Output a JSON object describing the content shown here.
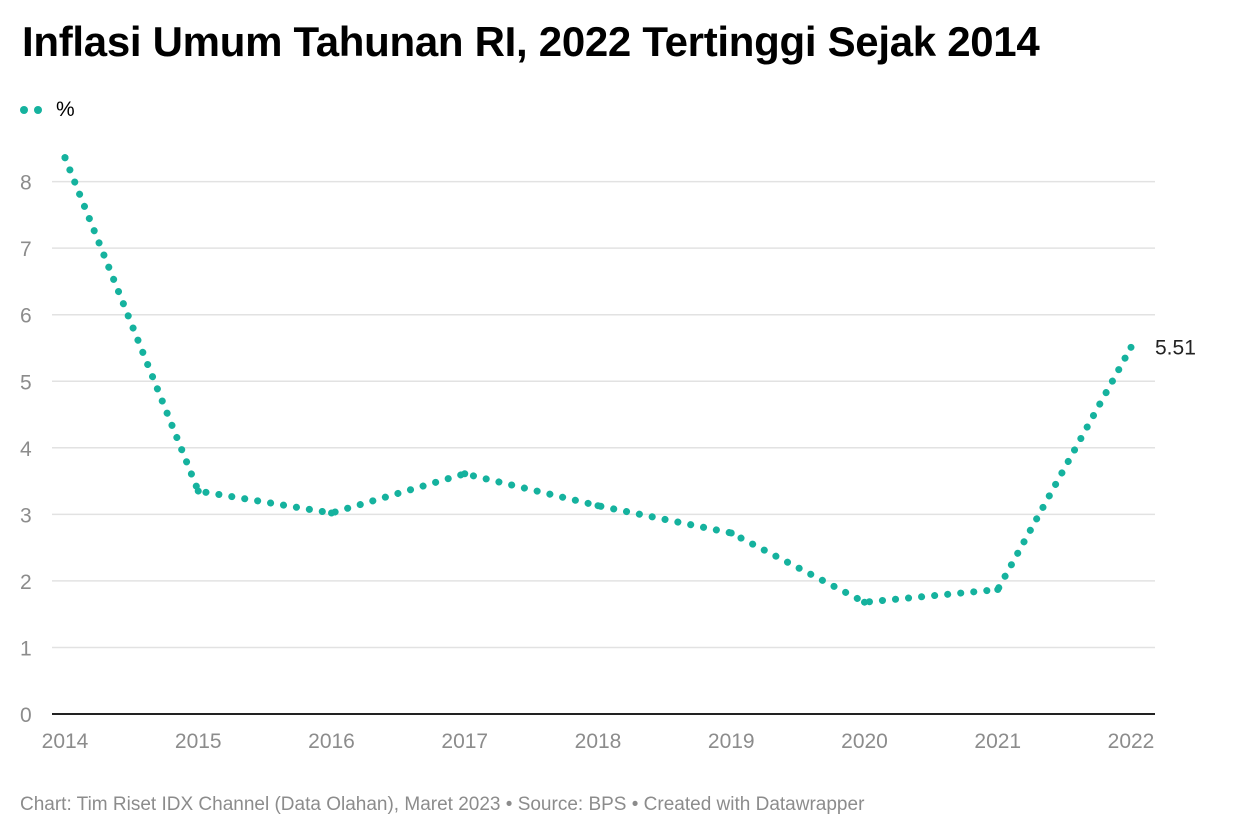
{
  "chart_data": {
    "type": "line",
    "title": "Inflasi Umum Tahunan RI, 2022 Tertinggi Sejak 2014",
    "legend": {
      "position": "top-left"
    },
    "x": [
      "2014",
      "2015",
      "2016",
      "2017",
      "2018",
      "2019",
      "2020",
      "2021",
      "2022"
    ],
    "series": [
      {
        "name": "%",
        "values": [
          8.36,
          3.35,
          3.02,
          3.61,
          3.13,
          2.72,
          1.68,
          1.87,
          5.51
        ],
        "color": "#15b29e",
        "line_style": "dotted",
        "end_label": "5.51"
      }
    ],
    "ylim": [
      0,
      8.4
    ],
    "yticks": [
      0,
      1,
      2,
      3,
      4,
      5,
      6,
      7,
      8
    ],
    "grid": true,
    "xlabel": "",
    "ylabel": ""
  },
  "footer": {
    "text": "Chart: Tim Riset IDX Channel (Data Olahan), Maret 2023 • Source: BPS • Created with Datawrapper"
  }
}
